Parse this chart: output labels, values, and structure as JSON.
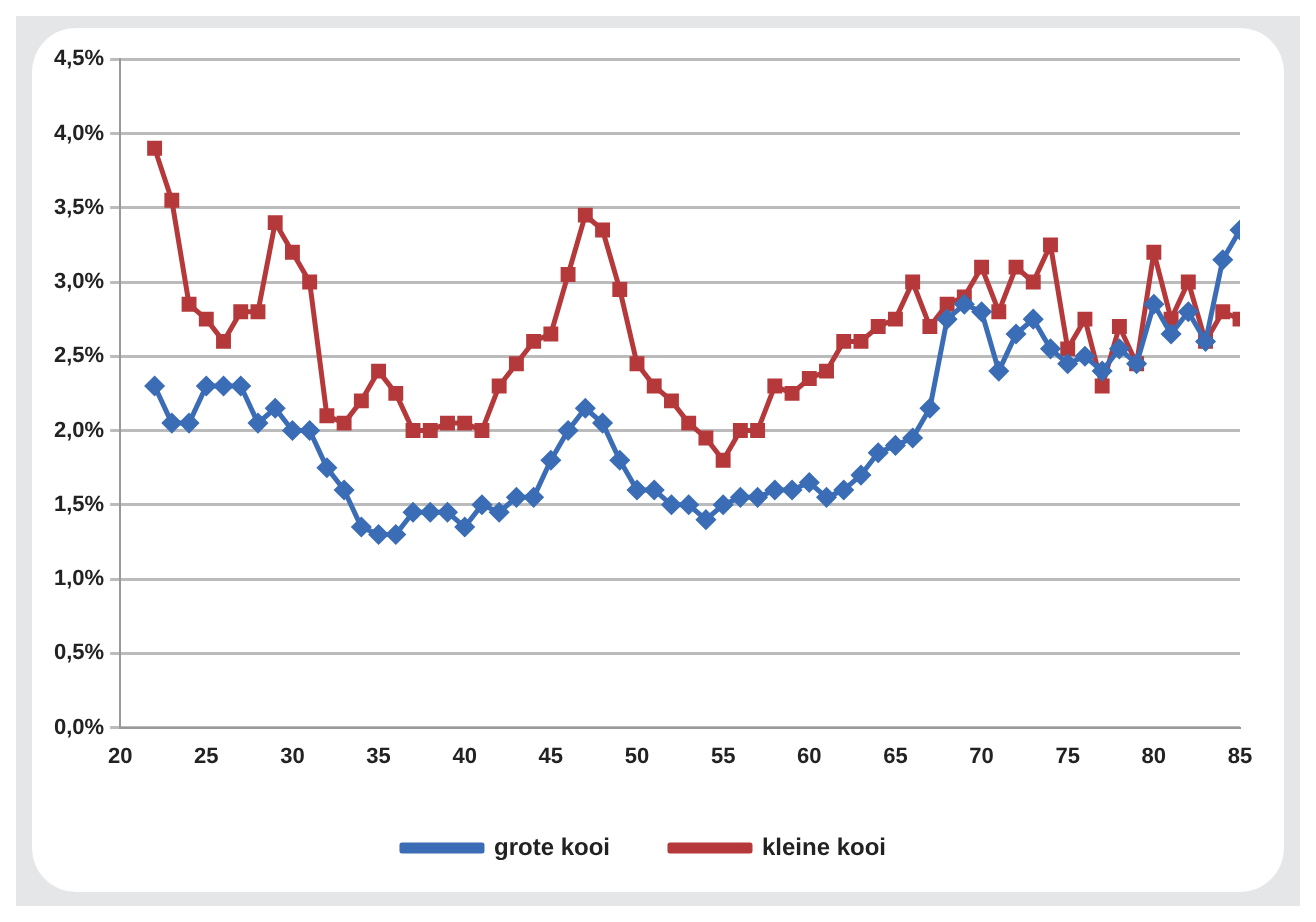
{
  "chart_data": {
    "type": "line",
    "x": [
      22,
      23,
      24,
      25,
      26,
      27,
      28,
      29,
      30,
      31,
      32,
      33,
      34,
      35,
      36,
      37,
      38,
      39,
      40,
      41,
      42,
      43,
      44,
      45,
      46,
      47,
      48,
      49,
      50,
      51,
      52,
      53,
      54,
      55,
      56,
      57,
      58,
      59,
      60,
      61,
      62,
      63,
      64,
      65,
      66,
      67,
      68,
      69,
      70,
      71,
      72,
      73,
      74,
      75,
      76,
      77,
      78,
      79,
      80,
      81,
      82,
      83,
      84,
      85
    ],
    "series": [
      {
        "name": "grote kooi",
        "color": "#3a6db5",
        "marker": "diamond",
        "values": [
          2.3,
          2.05,
          2.05,
          2.3,
          2.3,
          2.3,
          2.05,
          2.15,
          2.0,
          2.0,
          1.75,
          1.6,
          1.35,
          1.3,
          1.3,
          1.45,
          1.45,
          1.45,
          1.35,
          1.5,
          1.45,
          1.55,
          1.55,
          1.8,
          2.0,
          2.15,
          2.05,
          1.8,
          1.6,
          1.6,
          1.5,
          1.5,
          1.4,
          1.5,
          1.55,
          1.55,
          1.6,
          1.6,
          1.65,
          1.55,
          1.6,
          1.7,
          1.85,
          1.9,
          1.95,
          2.15,
          2.75,
          2.85,
          2.8,
          2.4,
          2.65,
          2.75,
          2.55,
          2.45,
          2.5,
          2.4,
          2.55,
          2.45,
          2.85,
          2.65,
          2.8,
          2.6,
          3.15,
          3.35
        ]
      },
      {
        "name": "kleine kooi",
        "color": "#b5383a",
        "marker": "square",
        "values": [
          3.9,
          3.55,
          2.85,
          2.75,
          2.6,
          2.8,
          2.8,
          3.4,
          3.2,
          3.0,
          2.1,
          2.05,
          2.2,
          2.4,
          2.25,
          2.0,
          2.0,
          2.05,
          2.05,
          2.0,
          2.3,
          2.45,
          2.6,
          2.65,
          3.05,
          3.45,
          3.35,
          2.95,
          2.45,
          2.3,
          2.2,
          2.05,
          1.95,
          1.8,
          2.0,
          2.0,
          2.3,
          2.25,
          2.35,
          2.4,
          2.6,
          2.6,
          2.7,
          2.75,
          3.0,
          2.7,
          2.85,
          2.9,
          3.1,
          2.8,
          3.1,
          3.0,
          3.25,
          2.55,
          2.75,
          2.3,
          2.7,
          2.45,
          3.2,
          2.75,
          3.0,
          2.6,
          2.8,
          2.75
        ]
      }
    ],
    "xlim": [
      20,
      85
    ],
    "xticks": [
      20,
      25,
      30,
      35,
      40,
      45,
      50,
      55,
      60,
      65,
      70,
      75,
      80,
      85
    ],
    "ylim": [
      0,
      4.5
    ],
    "yticks": [
      {
        "value": 0,
        "label": "0,0%"
      },
      {
        "value": 0.5,
        "label": "0,5%"
      },
      {
        "value": 1,
        "label": "1,0%"
      },
      {
        "value": 1.5,
        "label": "1,5%"
      },
      {
        "value": 2,
        "label": "2,0%"
      },
      {
        "value": 2.5,
        "label": "2,5%"
      },
      {
        "value": 3,
        "label": "3,0%"
      },
      {
        "value": 3.5,
        "label": "3,5%"
      },
      {
        "value": 4,
        "label": "4,0%"
      },
      {
        "value": 4.5,
        "label": "4,5%"
      }
    ],
    "grid": "y",
    "legend": "bottom",
    "line_style": "solid"
  }
}
